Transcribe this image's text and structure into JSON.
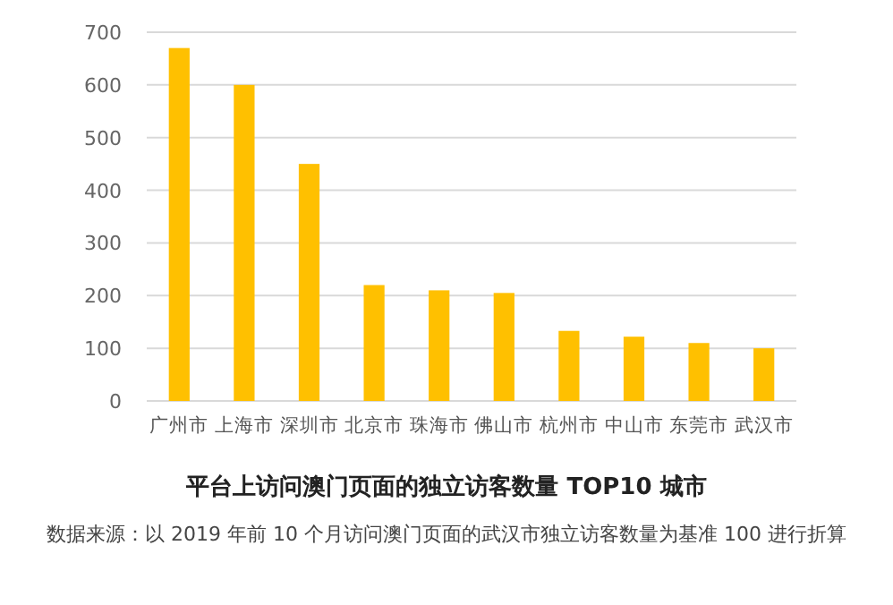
{
  "chart_data": {
    "type": "bar",
    "title": "平台上访问澳门页面的独立访客数量 TOP10 城市",
    "annotations": [
      "数据来源：以 2019 年前 10 个月访问澳门页面的武汉市独立访客数量为基准 100 进行折算"
    ],
    "categories": [
      "广州市",
      "上海市",
      "深圳市",
      "北京市",
      "珠海市",
      "佛山市",
      "杭州市",
      "中山市",
      "东莞市",
      "武汉市"
    ],
    "values": [
      670,
      600,
      450,
      220,
      210,
      205,
      133,
      122,
      110,
      100
    ],
    "color": "#ffc000",
    "ylim": [
      0,
      700
    ],
    "yticks": [
      0,
      100,
      200,
      300,
      400,
      500,
      600,
      700
    ],
    "grid": "y"
  }
}
